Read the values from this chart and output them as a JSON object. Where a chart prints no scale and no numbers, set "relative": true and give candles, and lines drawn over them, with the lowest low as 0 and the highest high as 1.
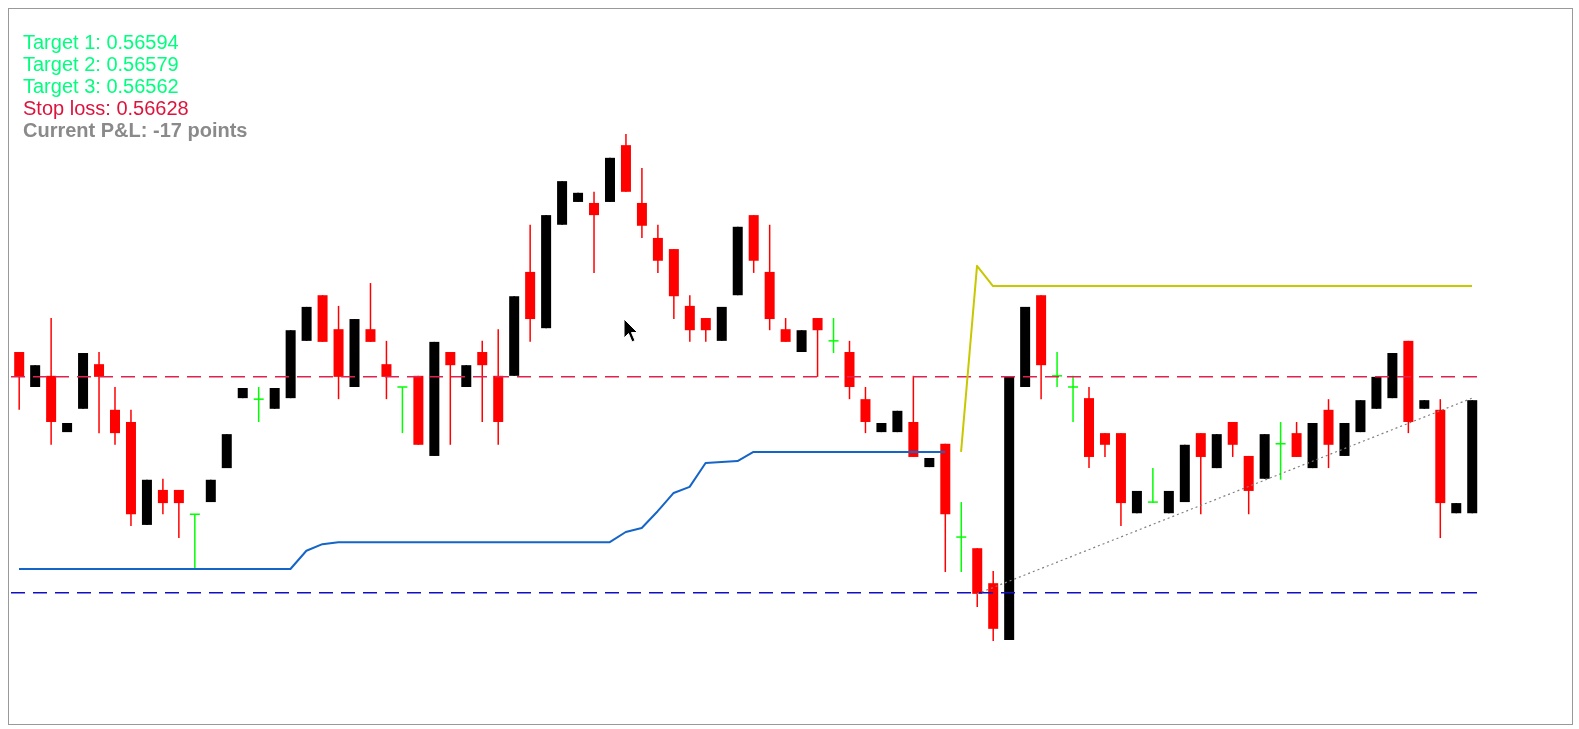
{
  "chart_data": {
    "type": "candlestick",
    "relative": true,
    "tick_labels": false,
    "grid": false,
    "categories": [
      null,
      null,
      null,
      null,
      null,
      null,
      null,
      null,
      null,
      null,
      null,
      null,
      null,
      null,
      null,
      null,
      null,
      null,
      null,
      null,
      null,
      null,
      null,
      null,
      null,
      null,
      null,
      null,
      null,
      null,
      null,
      null,
      null,
      null,
      null,
      null,
      null,
      null,
      null,
      null,
      null,
      null,
      null,
      null,
      null,
      null,
      null,
      null,
      null,
      null,
      null,
      null,
      null,
      null,
      null,
      null,
      null,
      null,
      null,
      null,
      null,
      null,
      null,
      null,
      null,
      null,
      null,
      null,
      null,
      null,
      null,
      null,
      null,
      null,
      null,
      null,
      null,
      null,
      null,
      null,
      null,
      null,
      null,
      null,
      null,
      null,
      null,
      null,
      null,
      null,
      null,
      null
    ],
    "ohlc": [
      [
        0.57,
        0.57,
        0.456,
        0.521
      ],
      [
        0.501,
        0.544,
        0.501,
        0.544
      ],
      [
        0.523,
        0.637,
        0.387,
        0.432
      ],
      [
        0.412,
        0.43,
        0.412,
        0.43
      ],
      [
        0.458,
        0.568,
        0.458,
        0.568
      ],
      [
        0.546,
        0.57,
        0.41,
        0.521
      ],
      [
        0.456,
        0.501,
        0.387,
        0.41
      ],
      [
        0.432,
        0.456,
        0.227,
        0.25
      ],
      [
        0.229,
        0.318,
        0.229,
        0.318
      ],
      [
        0.298,
        0.32,
        0.25,
        0.272
      ],
      [
        0.298,
        0.298,
        0.203,
        0.272
      ],
      [
        0.25,
        0.25,
        0.14,
        0.25
      ],
      [
        0.274,
        0.318,
        0.274,
        0.318
      ],
      [
        0.341,
        0.408,
        0.341,
        0.408
      ],
      [
        0.479,
        0.499,
        0.479,
        0.499
      ],
      [
        0.477,
        0.501,
        0.432,
        0.477
      ],
      [
        0.458,
        0.499,
        0.458,
        0.499
      ],
      [
        0.479,
        0.613,
        0.479,
        0.613
      ],
      [
        0.592,
        0.659,
        0.592,
        0.659
      ],
      [
        0.682,
        0.682,
        0.59,
        0.59
      ],
      [
        0.615,
        0.661,
        0.477,
        0.521
      ],
      [
        0.501,
        0.635,
        0.501,
        0.635
      ],
      [
        0.615,
        0.706,
        0.59,
        0.59
      ],
      [
        0.546,
        0.592,
        0.477,
        0.521
      ],
      [
        0.501,
        0.501,
        0.41,
        0.501
      ],
      [
        0.523,
        0.523,
        0.387,
        0.387
      ],
      [
        0.365,
        0.59,
        0.365,
        0.59
      ],
      [
        0.57,
        0.57,
        0.387,
        0.544
      ],
      [
        0.501,
        0.544,
        0.501,
        0.544
      ],
      [
        0.57,
        0.592,
        0.432,
        0.544
      ],
      [
        0.523,
        0.615,
        0.387,
        0.432
      ],
      [
        0.523,
        0.68,
        0.523,
        0.68
      ],
      [
        0.728,
        0.821,
        0.59,
        0.635
      ],
      [
        0.617,
        0.84,
        0.617,
        0.84
      ],
      [
        0.821,
        0.907,
        0.821,
        0.907
      ],
      [
        0.866,
        0.884,
        0.866,
        0.884
      ],
      [
        0.864,
        0.886,
        0.726,
        0.84
      ],
      [
        0.866,
        0.953,
        0.866,
        0.953
      ],
      [
        0.978,
        1.0,
        0.886,
        0.886
      ],
      [
        0.864,
        0.933,
        0.795,
        0.819
      ],
      [
        0.795,
        0.821,
        0.726,
        0.75
      ],
      [
        0.773,
        0.773,
        0.635,
        0.68
      ],
      [
        0.661,
        0.682,
        0.59,
        0.613
      ],
      [
        0.637,
        0.637,
        0.59,
        0.613
      ],
      [
        0.592,
        0.659,
        0.592,
        0.659
      ],
      [
        0.682,
        0.817,
        0.682,
        0.817
      ],
      [
        0.84,
        0.84,
        0.726,
        0.75
      ],
      [
        0.728,
        0.821,
        0.613,
        0.635
      ],
      [
        0.615,
        0.637,
        0.59,
        0.59
      ],
      [
        0.57,
        0.613,
        0.57,
        0.613
      ],
      [
        0.637,
        0.637,
        0.521,
        0.613
      ],
      [
        0.592,
        0.637,
        0.568,
        0.592
      ],
      [
        0.57,
        0.592,
        0.477,
        0.501
      ],
      [
        0.477,
        0.501,
        0.41,
        0.432
      ],
      [
        0.412,
        0.43,
        0.412,
        0.43
      ],
      [
        0.412,
        0.454,
        0.412,
        0.454
      ],
      [
        0.432,
        0.523,
        0.363,
        0.363
      ],
      [
        0.343,
        0.361,
        0.343,
        0.361
      ],
      [
        0.389,
        0.389,
        0.136,
        0.25
      ],
      [
        0.205,
        0.274,
        0.136,
        0.205
      ],
      [
        0.183,
        0.183,
        0.067,
        0.093
      ],
      [
        0.114,
        0.138,
        0.0,
        0.024
      ],
      [
        0.002,
        0.521,
        0.002,
        0.521
      ],
      [
        0.501,
        0.659,
        0.501,
        0.659
      ],
      [
        0.682,
        0.682,
        0.477,
        0.544
      ],
      [
        0.523,
        0.57,
        0.501,
        0.523
      ],
      [
        0.501,
        0.523,
        0.432,
        0.501
      ],
      [
        0.479,
        0.501,
        0.341,
        0.363
      ],
      [
        0.41,
        0.41,
        0.363,
        0.387
      ],
      [
        0.41,
        0.41,
        0.227,
        0.272
      ],
      [
        0.252,
        0.296,
        0.252,
        0.296
      ],
      [
        0.274,
        0.341,
        0.272,
        0.274
      ],
      [
        0.252,
        0.296,
        0.252,
        0.296
      ],
      [
        0.274,
        0.387,
        0.274,
        0.387
      ],
      [
        0.41,
        0.41,
        0.25,
        0.363
      ],
      [
        0.341,
        0.408,
        0.341,
        0.408
      ],
      [
        0.432,
        0.432,
        0.363,
        0.387
      ],
      [
        0.365,
        0.365,
        0.25,
        0.296
      ],
      [
        0.32,
        0.408,
        0.32,
        0.408
      ],
      [
        0.389,
        0.432,
        0.318,
        0.389
      ],
      [
        0.41,
        0.432,
        0.363,
        0.363
      ],
      [
        0.341,
        0.43,
        0.341,
        0.43
      ],
      [
        0.456,
        0.477,
        0.341,
        0.387
      ],
      [
        0.365,
        0.43,
        0.365,
        0.43
      ],
      [
        0.412,
        0.475,
        0.412,
        0.475
      ],
      [
        0.458,
        0.521,
        0.458,
        0.521
      ],
      [
        0.479,
        0.568,
        0.479,
        0.568
      ],
      [
        0.592,
        0.592,
        0.41,
        0.432
      ],
      [
        0.458,
        0.475,
        0.458,
        0.475
      ],
      [
        0.456,
        0.477,
        0.203,
        0.272
      ],
      [
        0.252,
        0.272,
        0.252,
        0.272
      ],
      [
        0.252,
        0.475,
        0.252,
        0.475
      ]
    ],
    "colors": [
      "#ff0000",
      "#000000",
      "#ff0000",
      "#000000",
      "#000000",
      "#ff0000",
      "#ff0000",
      "#ff0000",
      "#000000",
      "#ff0000",
      "#ff0000",
      "#00ff00",
      "#000000",
      "#000000",
      "#000000",
      "#00ff00",
      "#000000",
      "#000000",
      "#000000",
      "#ff0000",
      "#ff0000",
      "#000000",
      "#ff0000",
      "#ff0000",
      "#00ff00",
      "#ff0000",
      "#000000",
      "#ff0000",
      "#000000",
      "#ff0000",
      "#ff0000",
      "#000000",
      "#ff0000",
      "#000000",
      "#000000",
      "#000000",
      "#ff0000",
      "#000000",
      "#ff0000",
      "#ff0000",
      "#ff0000",
      "#ff0000",
      "#ff0000",
      "#ff0000",
      "#000000",
      "#000000",
      "#ff0000",
      "#ff0000",
      "#ff0000",
      "#000000",
      "#ff0000",
      "#00ff00",
      "#ff0000",
      "#ff0000",
      "#000000",
      "#000000",
      "#ff0000",
      "#000000",
      "#ff0000",
      "#00ff00",
      "#ff0000",
      "#ff0000",
      "#000000",
      "#000000",
      "#ff0000",
      "#00ff00",
      "#00ff00",
      "#ff0000",
      "#ff0000",
      "#ff0000",
      "#000000",
      "#00ff00",
      "#000000",
      "#000000",
      "#ff0000",
      "#000000",
      "#ff0000",
      "#ff0000",
      "#000000",
      "#00ff00",
      "#ff0000",
      "#000000",
      "#ff0000",
      "#000000",
      "#000000",
      "#000000",
      "#000000",
      "#ff0000",
      "#000000",
      "#ff0000",
      "#000000",
      "#000000"
    ],
    "series": [
      {
        "type": "line",
        "color": "#1565c8",
        "values": [
          0.142,
          0.142,
          0.142,
          0.142,
          0.142,
          0.142,
          0.142,
          0.142,
          0.142,
          0.142,
          0.142,
          0.142,
          0.142,
          0.142,
          0.142,
          0.142,
          0.142,
          0.142,
          0.178,
          0.191,
          0.195,
          0.195,
          0.195,
          0.195,
          0.195,
          0.195,
          0.195,
          0.195,
          0.195,
          0.195,
          0.195,
          0.195,
          0.195,
          0.195,
          0.195,
          0.195,
          0.195,
          0.195,
          0.215,
          0.223,
          0.256,
          0.292,
          0.304,
          0.351,
          0.353,
          0.355,
          0.373,
          0.373,
          0.373,
          0.373,
          0.373,
          0.373,
          0.373,
          0.373,
          0.373,
          0.373,
          0.373,
          0.373,
          0.373,
          null,
          null,
          null,
          null,
          null,
          null,
          null,
          null,
          null,
          null,
          null,
          null,
          null,
          null,
          null,
          null,
          null,
          null,
          null,
          null,
          null,
          null,
          null,
          null,
          null,
          null,
          null,
          null,
          null,
          null,
          null,
          null,
          null
        ]
      },
      {
        "type": "line",
        "color": "#c8c800",
        "values": [
          null,
          null,
          null,
          null,
          null,
          null,
          null,
          null,
          null,
          null,
          null,
          null,
          null,
          null,
          null,
          null,
          null,
          null,
          null,
          null,
          null,
          null,
          null,
          null,
          null,
          null,
          null,
          null,
          null,
          null,
          null,
          null,
          null,
          null,
          null,
          null,
          null,
          null,
          null,
          null,
          null,
          null,
          null,
          null,
          null,
          null,
          null,
          null,
          null,
          null,
          null,
          null,
          null,
          null,
          null,
          null,
          null,
          null,
          null,
          0.373,
          0.74,
          0.7,
          0.7,
          0.7,
          0.7,
          0.7,
          0.7,
          0.7,
          0.7,
          0.7,
          0.7,
          0.7,
          0.7,
          0.7,
          0.7,
          0.7,
          0.7,
          0.7,
          0.7,
          0.7,
          0.7,
          0.7,
          0.7,
          0.7,
          0.7,
          0.7,
          0.7,
          0.7,
          0.7,
          0.7,
          0.7,
          0.7
        ]
      },
      {
        "type": "line",
        "color": "#808080",
        "line_style": "dotted",
        "values": [
          null,
          null,
          null,
          null,
          null,
          null,
          null,
          null,
          null,
          null,
          null,
          null,
          null,
          null,
          null,
          null,
          null,
          null,
          null,
          null,
          null,
          null,
          null,
          null,
          null,
          null,
          null,
          null,
          null,
          null,
          null,
          null,
          null,
          null,
          null,
          null,
          null,
          null,
          null,
          null,
          null,
          null,
          null,
          null,
          null,
          null,
          null,
          null,
          null,
          null,
          null,
          null,
          null,
          null,
          null,
          null,
          null,
          null,
          null,
          null,
          0.093,
          null,
          null,
          null,
          null,
          null,
          null,
          null,
          null,
          null,
          null,
          null,
          null,
          null,
          null,
          null,
          null,
          null,
          null,
          null,
          null,
          null,
          null,
          null,
          null,
          null,
          null,
          null,
          null,
          null,
          null,
          0.479
        ]
      }
    ],
    "ref_lines": [
      {
        "axis": "y",
        "value": 0.521,
        "color": "#e0234e",
        "line_style": "dashed"
      },
      {
        "axis": "y",
        "value": 0.095,
        "color": "#1010c0",
        "line_style": "dashed"
      }
    ],
    "annotations": [
      "Target 1: 0.56594",
      "Target 2: 0.56579",
      "Target 3: 0.56562",
      "Stop loss: 0.56628",
      "Current P&L: -17 points"
    ]
  }
}
